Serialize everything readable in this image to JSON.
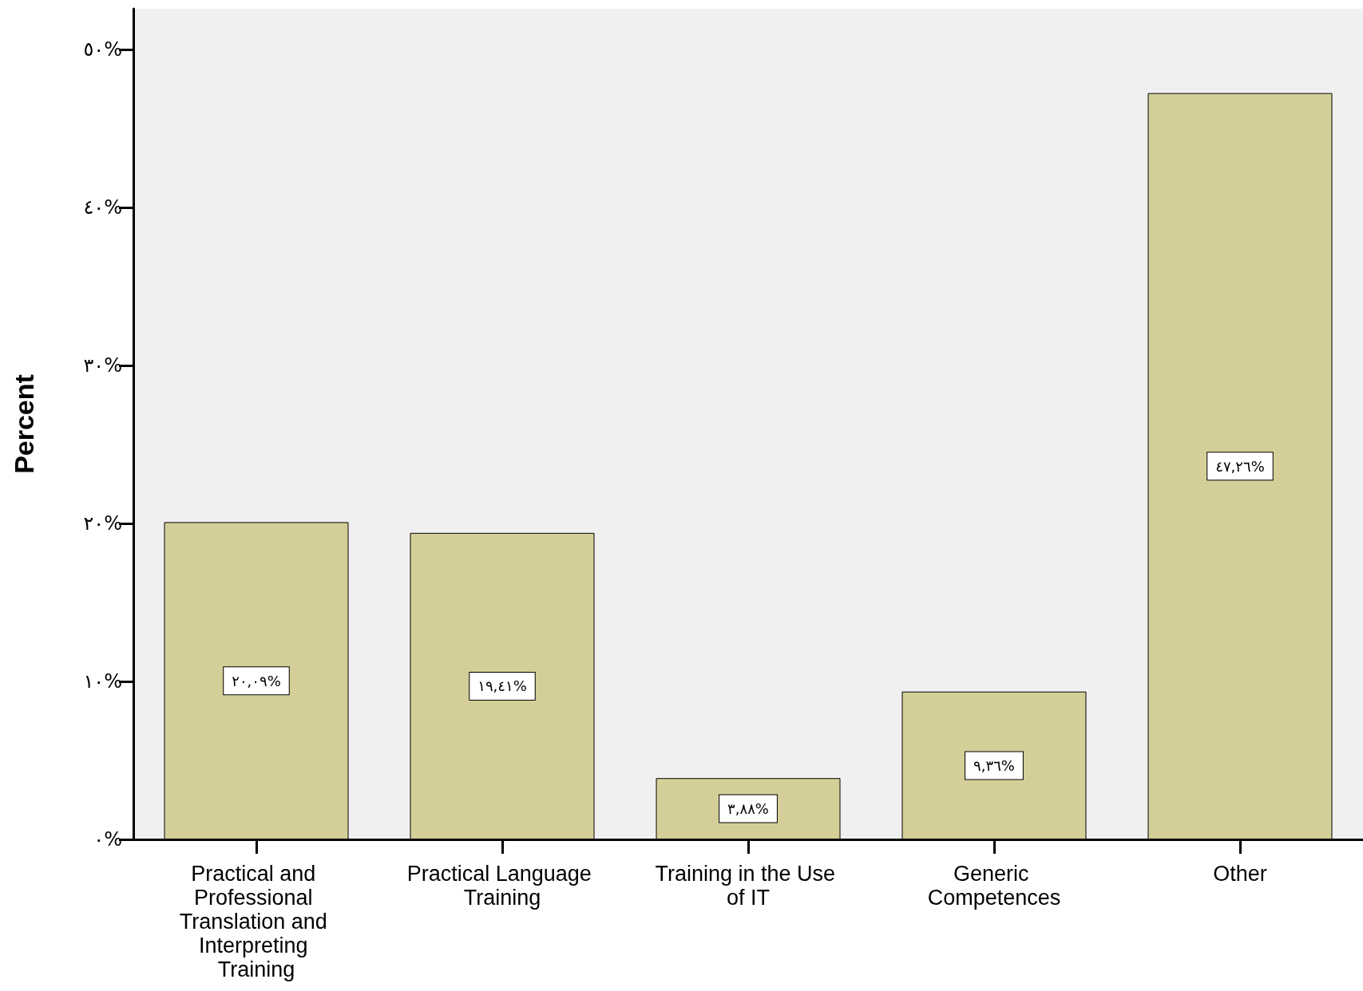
{
  "chart_data": {
    "type": "bar",
    "ylabel": "Percent",
    "categories": [
      "Practical and Professional Translation and Interpreting Training",
      "Practical Language Training",
      "Training in the Use of IT",
      "Generic Competences",
      "Other"
    ],
    "values": [
      20.09,
      19.41,
      3.88,
      9.36,
      47.26
    ],
    "value_labels": [
      "٢٠,٠٩%",
      "١٩,٤١%",
      "٣,٨٨%",
      "٩,٣٦%",
      "٤٧,٢٦%"
    ],
    "color": "#d4cf98",
    "ylim": [
      0,
      52.6
    ],
    "yticks": [
      {
        "value": 0,
        "label": "٠%"
      },
      {
        "value": 10,
        "label": "١٠%"
      },
      {
        "value": 20,
        "label": "٢٠%"
      },
      {
        "value": 30,
        "label": "٣٠%"
      },
      {
        "value": 40,
        "label": "٤٠%"
      },
      {
        "value": 50,
        "label": "٥٠%"
      }
    ],
    "grid": false
  }
}
